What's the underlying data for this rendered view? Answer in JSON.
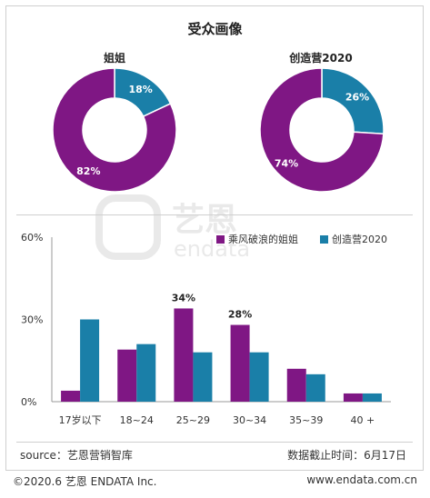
{
  "title": "受众画像",
  "colors": {
    "purple": "#7f1784",
    "blue": "#1a7fa8"
  },
  "pies": [
    {
      "title": "姐姐",
      "slices": [
        {
          "label": "18%",
          "value": 18,
          "color": "#1a7fa8"
        },
        {
          "label": "82%",
          "value": 82,
          "color": "#7f1784"
        }
      ]
    },
    {
      "title": "创造营2020",
      "slices": [
        {
          "label": "26%",
          "value": 26,
          "color": "#1a7fa8"
        },
        {
          "label": "74%",
          "value": 74,
          "color": "#7f1784"
        }
      ]
    }
  ],
  "watermark": {
    "cn": "艺恩",
    "en": "endata"
  },
  "chart_data": {
    "type": "bar",
    "categories": [
      "17岁以下",
      "18~24",
      "25~29",
      "30~34",
      "35~39",
      "40 +"
    ],
    "series": [
      {
        "name": "乘风破浪的姐姐",
        "color": "#7f1784",
        "values": [
          4,
          19,
          34,
          28,
          12,
          3
        ]
      },
      {
        "name": "创造营2020",
        "color": "#1a7fa8",
        "values": [
          30,
          21,
          18,
          18,
          10,
          3
        ]
      }
    ],
    "ylim": [
      0,
      60
    ],
    "yticks": [
      "0%",
      "30%",
      "60%"
    ],
    "annotations": [
      "34%",
      "28%"
    ],
    "legend_position": "top-right"
  },
  "footer": {
    "source": "source：艺恩营销智库",
    "cutoff": "数据截止时间：6月17日"
  },
  "copyright": {
    "left": "©2020.6  艺恩 ENDATA Inc.",
    "right": "www.endata.com.cn"
  }
}
